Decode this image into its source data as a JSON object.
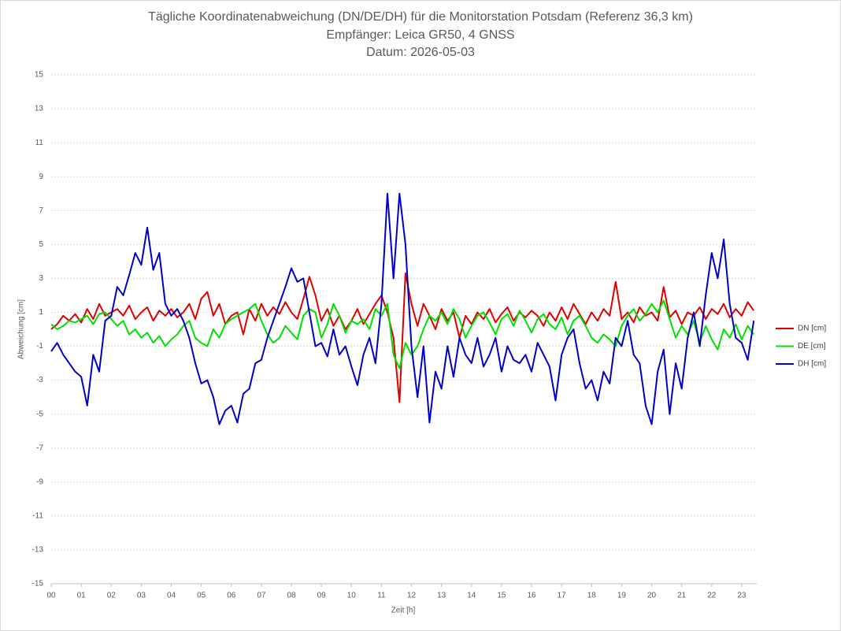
{
  "chart_data": {
    "type": "line",
    "title": "Tägliche Koordinatenabweichung (DN/DE/DH) für die Monitorstation Potsdam (Referenz 36,3 km)",
    "subtitle": "Empfänger: Leica GR50, 4 GNSS",
    "date_label": "Datum: 2026-05-03",
    "x_label": "Zeit [h]",
    "y_label": "Abweichung [cm]",
    "grid": true,
    "legend": "right",
    "xlim": [
      0,
      23.5
    ],
    "ylim": [
      -15,
      15
    ],
    "yticks": [
      -15,
      -13,
      -11,
      -9,
      -7,
      -5,
      -3,
      -1,
      1,
      3,
      5,
      7,
      9,
      11,
      13,
      15
    ],
    "xticks": [
      {
        "value": 0,
        "label": "00"
      },
      {
        "value": 1,
        "label": "01"
      },
      {
        "value": 2,
        "label": "02"
      },
      {
        "value": 3,
        "label": "03"
      },
      {
        "value": 4,
        "label": "04"
      },
      {
        "value": 5,
        "label": "05"
      },
      {
        "value": 6,
        "label": "06"
      },
      {
        "value": 7,
        "label": "07"
      },
      {
        "value": 8,
        "label": "08"
      },
      {
        "value": 9,
        "label": "09"
      },
      {
        "value": 10,
        "label": "10"
      },
      {
        "value": 11,
        "label": "11"
      },
      {
        "value": 12,
        "label": "12"
      },
      {
        "value": 13,
        "label": "13"
      },
      {
        "value": 14,
        "label": "14"
      },
      {
        "value": 15,
        "label": "15"
      },
      {
        "value": 16,
        "label": "16"
      },
      {
        "value": 17,
        "label": "17"
      },
      {
        "value": 18,
        "label": "18"
      },
      {
        "value": 19,
        "label": "19"
      },
      {
        "value": 20,
        "label": "20"
      },
      {
        "value": 21,
        "label": "21"
      },
      {
        "value": 22,
        "label": "22"
      },
      {
        "value": 23,
        "label": "23"
      }
    ],
    "x": [
      0,
      0.2,
      0.4,
      0.6,
      0.8,
      1,
      1.2,
      1.4,
      1.6,
      1.8,
      2,
      2.2,
      2.4,
      2.6,
      2.8,
      3,
      3.2,
      3.4,
      3.6,
      3.8,
      4,
      4.2,
      4.4,
      4.6,
      4.8,
      5,
      5.2,
      5.4,
      5.6,
      5.8,
      6,
      6.2,
      6.4,
      6.6,
      6.8,
      7,
      7.2,
      7.4,
      7.6,
      7.8,
      8,
      8.2,
      8.4,
      8.6,
      8.8,
      9,
      9.2,
      9.4,
      9.6,
      9.8,
      10,
      10.2,
      10.4,
      10.6,
      10.8,
      11,
      11.2,
      11.4,
      11.6,
      11.8,
      12,
      12.2,
      12.4,
      12.6,
      12.8,
      13,
      13.2,
      13.4,
      13.6,
      13.8,
      14,
      14.2,
      14.4,
      14.6,
      14.8,
      15,
      15.2,
      15.4,
      15.6,
      15.8,
      16,
      16.2,
      16.4,
      16.6,
      16.8,
      17,
      17.2,
      17.4,
      17.6,
      17.8,
      18,
      18.2,
      18.4,
      18.6,
      18.8,
      19,
      19.2,
      19.4,
      19.6,
      19.8,
      20,
      20.2,
      20.4,
      20.6,
      20.8,
      21,
      21.2,
      21.4,
      21.6,
      21.8,
      22,
      22.2,
      22.4,
      22.6,
      22.8,
      23,
      23.2,
      23.4
    ],
    "series": [
      {
        "name": "DN [cm]",
        "color": "#e00000",
        "values": [
          0,
          0.3,
          0.8,
          0.5,
          0.9,
          0.4,
          1.2,
          0.6,
          1.5,
          0.8,
          1.0,
          1.2,
          0.8,
          1.4,
          0.6,
          1.0,
          1.3,
          0.5,
          1.1,
          0.8,
          1.2,
          0.7,
          1.0,
          1.5,
          0.6,
          1.8,
          2.2,
          0.8,
          1.5,
          0.3,
          0.8,
          1.0,
          -0.3,
          1.2,
          0.5,
          1.5,
          0.8,
          1.3,
          0.9,
          1.6,
          1.0,
          0.6,
          1.8,
          3.1,
          2.0,
          0.5,
          1.2,
          0.2,
          0.8,
          0.0,
          0.5,
          1.2,
          0.3,
          0.9,
          1.5,
          2.0,
          1.0,
          -0.5,
          -4.3,
          3.3,
          1.5,
          0.2,
          1.5,
          0.8,
          0.0,
          1.2,
          0.5,
          1.0,
          -0.5,
          0.8,
          0.3,
          1.0,
          0.6,
          1.2,
          0.4,
          0.9,
          1.3,
          0.5,
          1.0,
          0.7,
          1.1,
          0.8,
          0.2,
          1.0,
          0.5,
          1.3,
          0.6,
          1.5,
          0.9,
          0.3,
          1.0,
          0.5,
          1.2,
          0.8,
          2.8,
          0.6,
          1.0,
          0.4,
          1.3,
          0.8,
          1.0,
          0.5,
          2.5,
          0.7,
          1.1,
          0.3,
          1.0,
          0.8,
          1.3,
          0.6,
          1.2,
          0.9,
          1.5,
          0.7,
          1.2,
          0.8,
          1.6,
          1.1
        ]
      },
      {
        "name": "DE [cm]",
        "color": "#00e000",
        "values": [
          0.3,
          0.0,
          0.2,
          0.5,
          0.4,
          0.6,
          0.8,
          0.3,
          0.9,
          1.0,
          0.6,
          0.2,
          0.5,
          -0.3,
          0.0,
          -0.5,
          -0.2,
          -0.8,
          -0.4,
          -1.0,
          -0.6,
          -0.3,
          0.2,
          0.5,
          -0.5,
          -0.8,
          -1.0,
          0.0,
          -0.5,
          0.3,
          0.6,
          0.8,
          1.0,
          1.2,
          1.5,
          0.5,
          -0.3,
          -0.8,
          -0.5,
          0.2,
          -0.2,
          -0.6,
          0.8,
          1.2,
          1.0,
          -0.5,
          0.3,
          1.5,
          0.8,
          -0.2,
          0.5,
          0.3,
          0.6,
          0.0,
          1.2,
          0.8,
          1.5,
          -1.5,
          -2.3,
          -0.8,
          -1.5,
          -1.0,
          0.0,
          0.8,
          0.5,
          1.0,
          0.3,
          1.2,
          0.6,
          -0.5,
          0.2,
          0.8,
          1.0,
          0.4,
          -0.3,
          0.6,
          0.9,
          0.2,
          1.1,
          0.5,
          -0.2,
          0.6,
          0.9,
          0.3,
          0.0,
          0.7,
          -0.3,
          0.5,
          0.8,
          0.2,
          -0.5,
          -0.8,
          -0.3,
          -0.6,
          -1.0,
          0.2,
          0.8,
          1.2,
          0.5,
          0.9,
          1.5,
          1.0,
          1.7,
          0.6,
          -0.5,
          0.2,
          -0.3,
          0.5,
          -0.8,
          0.2,
          -0.6,
          -1.2,
          0.0,
          -0.5,
          0.3,
          -0.6,
          0.2,
          -0.3
        ]
      },
      {
        "name": "DH [cm]",
        "color": "#0000c8",
        "values": [
          -1.3,
          -0.8,
          -1.5,
          -2.0,
          -2.5,
          -2.8,
          -4.5,
          -1.5,
          -2.5,
          0.5,
          0.8,
          2.5,
          2.0,
          3.2,
          4.5,
          3.8,
          6.0,
          3.5,
          4.5,
          1.5,
          0.8,
          1.2,
          0.5,
          -0.5,
          -2.0,
          -3.2,
          -3.0,
          -4.0,
          -5.6,
          -4.8,
          -4.5,
          -5.5,
          -3.8,
          -3.5,
          -2.0,
          -1.8,
          -0.5,
          0.5,
          1.5,
          2.5,
          3.6,
          2.8,
          3.0,
          1.0,
          -1.0,
          -0.8,
          -1.6,
          0.0,
          -1.5,
          -1.0,
          -2.2,
          -3.3,
          -1.5,
          -0.5,
          -2.0,
          1.5,
          8.0,
          3.0,
          8.0,
          5.0,
          -1.0,
          -4.0,
          -1.0,
          -5.5,
          -2.5,
          -3.5,
          -1.0,
          -2.8,
          -0.5,
          -1.5,
          -2.0,
          -0.5,
          -2.2,
          -1.5,
          -0.5,
          -2.5,
          -1.0,
          -1.8,
          -2.0,
          -1.5,
          -2.5,
          -0.8,
          -1.5,
          -2.2,
          -4.2,
          -1.5,
          -0.5,
          0.0,
          -2.0,
          -3.5,
          -3.0,
          -4.2,
          -2.5,
          -3.2,
          -0.5,
          -1.0,
          0.5,
          -1.5,
          -2.0,
          -4.5,
          -5.6,
          -2.5,
          -1.2,
          -5.0,
          -2.0,
          -3.5,
          -0.5,
          1.0,
          -1.0,
          2.0,
          4.5,
          3.0,
          5.3,
          1.5,
          -0.5,
          -0.8,
          -1.8,
          0.5
        ]
      }
    ]
  }
}
